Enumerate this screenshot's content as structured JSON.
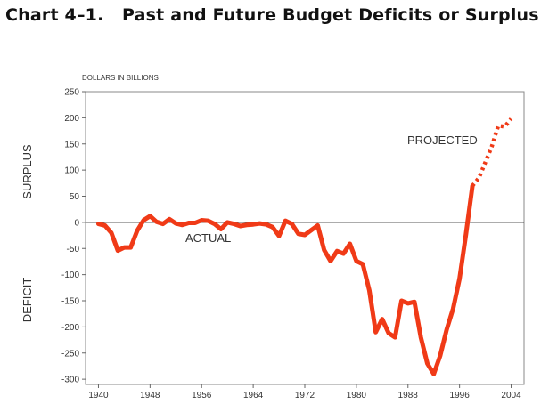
{
  "title": "Chart 4–1.   Past and Future Budget Deficits or Surplus",
  "chart_data": {
    "type": "line",
    "unit_label": "DOLLARS IN BILLIONS",
    "ylim": [
      -310,
      250
    ],
    "xlim": [
      1938,
      2006
    ],
    "y_ticks": [
      250,
      200,
      150,
      100,
      50,
      0,
      -50,
      -100,
      -150,
      -200,
      -250,
      -300
    ],
    "x_ticks": [
      1940,
      1948,
      1956,
      1964,
      1972,
      1980,
      1988,
      1996,
      2004
    ],
    "side_labels": {
      "upper": "SURPLUS",
      "lower": "DEFICIT"
    },
    "annotations": {
      "actual": "ACTUAL",
      "projected": "PROJECTED"
    },
    "series": [
      {
        "name": "Actual",
        "style": "solid",
        "color": "#f03a17",
        "x": [
          1940,
          1941,
          1942,
          1943,
          1944,
          1945,
          1946,
          1947,
          1948,
          1949,
          1950,
          1951,
          1952,
          1953,
          1954,
          1955,
          1956,
          1957,
          1958,
          1959,
          1960,
          1961,
          1962,
          1963,
          1964,
          1965,
          1966,
          1967,
          1968,
          1969,
          1970,
          1971,
          1972,
          1973,
          1974,
          1975,
          1976,
          1977,
          1978,
          1979,
          1980,
          1981,
          1982,
          1983,
          1984,
          1985,
          1986,
          1987,
          1988,
          1989,
          1990,
          1991,
          1992,
          1993,
          1994,
          1995,
          1996,
          1997,
          1998
        ],
        "y": [
          -3,
          -6,
          -20,
          -54,
          -48,
          -48,
          -16,
          4,
          12,
          1,
          -3,
          6,
          -2,
          -5,
          -1,
          -1,
          4,
          3,
          -3,
          -13,
          0,
          -3,
          -7,
          -5,
          -4,
          -2,
          -4,
          -9,
          -26,
          3,
          -3,
          -22,
          -24,
          -15,
          -6,
          -53,
          -74,
          -55,
          -60,
          -41,
          -74,
          -80,
          -130,
          -210,
          -185,
          -212,
          -220,
          -150,
          -155,
          -152,
          -220,
          -270,
          -290,
          -255,
          -205,
          -165,
          -108,
          -22,
          70
        ]
      },
      {
        "name": "Projected",
        "style": "dotted",
        "color": "#f03a17",
        "x": [
          1998,
          1999,
          2000,
          2001,
          2002,
          2003,
          2004
        ],
        "y": [
          70,
          85,
          115,
          145,
          185,
          183,
          198
        ]
      }
    ],
    "grid": false,
    "legend": "none"
  }
}
